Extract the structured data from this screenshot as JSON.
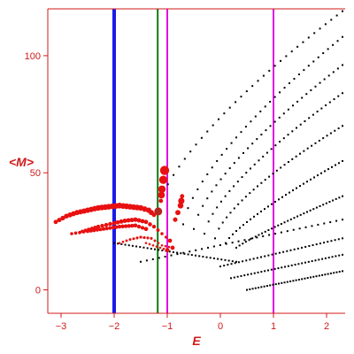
{
  "chart_data": {
    "type": "scatter",
    "title": "",
    "xlabel": "E",
    "ylabel": "<M>",
    "xlim": [
      -3.25,
      2.35
    ],
    "ylim": [
      -10,
      120
    ],
    "x_ticks": [
      -3,
      -2,
      -1,
      0,
      1,
      2
    ],
    "y_ticks": [
      0,
      50,
      100
    ],
    "grid": false,
    "legend": "none",
    "colors": {
      "axis": "#d01a1a",
      "series_main": "#000000",
      "series_highlight": "#e81010",
      "special_point": "#b3261e",
      "line_blue": "#1a1ae8",
      "line_green": "#0e7a0e",
      "line_magenta": "#e010e0"
    },
    "vertical_lines": [
      {
        "x": -2.0,
        "color": "#1a1ae8",
        "weight": "thick"
      },
      {
        "x": -1.18,
        "color": "#0e7a0e",
        "weight": "normal"
      },
      {
        "x": -1.0,
        "color": "#e010e0",
        "weight": "normal"
      },
      {
        "x": 1.0,
        "color": "#e010e0",
        "weight": "normal"
      }
    ],
    "special_point": {
      "x": -1.17,
      "y": 33.5
    },
    "series": [
      {
        "role": "spectrum_branches",
        "color": "#000000",
        "branches": [
          {
            "x_range": [
              -1.2,
              2.3
            ],
            "y_range": [
              33,
              119
            ],
            "curve": 0.7
          },
          {
            "x_range": [
              -0.7,
              2.3
            ],
            "y_range": [
              28,
              108
            ],
            "curve": 0.7
          },
          {
            "x_range": [
              -0.5,
              2.3
            ],
            "y_range": [
              26,
              96
            ],
            "curve": 0.7
          },
          {
            "x_range": [
              -0.3,
              2.3
            ],
            "y_range": [
              24,
              84
            ],
            "curve": 0.7
          },
          {
            "x_range": [
              -0.1,
              2.3
            ],
            "y_range": [
              22,
              70
            ],
            "curve": 0.7
          },
          {
            "x_range": [
              0.1,
              2.3
            ],
            "y_range": [
              20,
              55
            ],
            "curve": 0.8
          },
          {
            "x_range": [
              0.3,
              2.3
            ],
            "y_range": [
              18,
              40
            ],
            "curve": 0.9
          },
          {
            "x_range": [
              -1.5,
              2.3
            ],
            "y_range": [
              12,
              30
            ],
            "curve": 1.0
          },
          {
            "x_range": [
              -2.0,
              0.3
            ],
            "y_range": [
              20,
              12
            ],
            "curve": 1.0
          },
          {
            "x_range": [
              0.0,
              2.3
            ],
            "y_range": [
              10,
              22
            ],
            "curve": 1.0
          },
          {
            "x_range": [
              0.2,
              2.3
            ],
            "y_range": [
              5,
              15
            ],
            "curve": 1.0
          },
          {
            "x_range": [
              0.5,
              2.3
            ],
            "y_range": [
              0,
              8
            ],
            "curve": 1.0
          }
        ]
      },
      {
        "role": "highlighted_branches",
        "color": "#e81010",
        "branches": [
          {
            "points": [
              [
                -3.1,
                29
              ],
              [
                -2.9,
                31.5
              ],
              [
                -2.7,
                33
              ],
              [
                -2.5,
                34
              ],
              [
                -2.3,
                35
              ],
              [
                -2.1,
                35.5
              ],
              [
                -1.9,
                36
              ],
              [
                -1.7,
                35.5
              ],
              [
                -1.5,
                35
              ],
              [
                -1.35,
                34
              ],
              [
                -1.25,
                32
              ]
            ]
          },
          {
            "points": [
              [
                -2.6,
                25
              ],
              [
                -2.3,
                27
              ],
              [
                -2.0,
                28.5
              ],
              [
                -1.8,
                29.5
              ],
              [
                -1.6,
                30
              ],
              [
                -1.4,
                29
              ],
              [
                -1.25,
                27
              ],
              [
                -1.1,
                24
              ],
              [
                -0.95,
                21
              ]
            ]
          },
          {
            "points": [
              [
                -2.8,
                24
              ],
              [
                -2.5,
                25
              ],
              [
                -2.2,
                26
              ],
              [
                -1.9,
                27
              ],
              [
                -1.6,
                27.5
              ],
              [
                -1.4,
                26
              ]
            ]
          },
          {
            "points": [
              [
                -1.9,
                20
              ],
              [
                -1.7,
                21.5
              ],
              [
                -1.5,
                22.5
              ],
              [
                -1.3,
                22
              ],
              [
                -1.1,
                19
              ],
              [
                -0.9,
                18
              ]
            ]
          },
          {
            "points": [
              [
                -1.4,
                20
              ],
              [
                -1.2,
                18.5
              ],
              [
                -1.0,
                17
              ]
            ]
          },
          {
            "points": [
              [
                -1.05,
                51
              ],
              [
                -1.1,
                43
              ],
              [
                -1.12,
                38
              ]
            ]
          },
          {
            "points": [
              [
                -0.85,
                30
              ],
              [
                -0.75,
                36
              ],
              [
                -0.72,
                40
              ]
            ]
          }
        ]
      }
    ]
  }
}
